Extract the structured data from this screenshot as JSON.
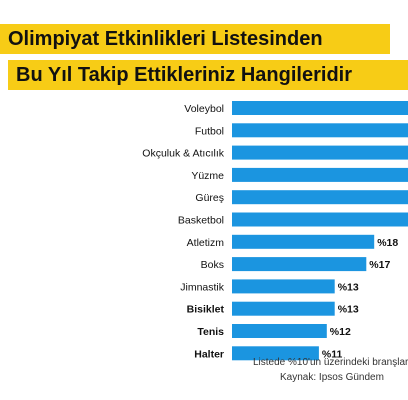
{
  "header": {
    "title_line1": "Olimpiyat Etkinlikleri Listesinden",
    "title_line2": "Bu Yıl Takip Ettikleriniz Hangileridir"
  },
  "footer": {
    "note": "Listede %10'un üzerindeki branşlar",
    "source": "Kaynak: Ipsos Gündem"
  },
  "colors": {
    "bar": "#1b95e0",
    "title_bg": "#f7cc16"
  },
  "chart_data": {
    "type": "bar",
    "orientation": "horizontal",
    "categories": [
      "Voleybol",
      "Futbol",
      "Okçuluk & Atıcılık",
      "Yüzme",
      "Güreş",
      "Basketbol",
      "Atletizm",
      "Boks",
      "Jimnastik",
      "Bisiklet",
      "Tenis",
      "Halter"
    ],
    "values": [
      null,
      null,
      null,
      null,
      null,
      null,
      18,
      17,
      13,
      13,
      12,
      11
    ],
    "value_labels": [
      "",
      "",
      "",
      "",
      "",
      "",
      "%18",
      "%17",
      "%13",
      "%13",
      "%12",
      "%11"
    ],
    "visible_bar_extent": [
      30,
      30,
      30,
      30,
      30,
      30,
      18,
      17,
      13,
      13,
      12,
      11
    ],
    "title": "Olimpiyat Etkinlikleri Listesinden Bu Yıl Takip Ettikleriniz Hangileridir",
    "xlabel": "",
    "ylabel": "",
    "grid": false
  }
}
